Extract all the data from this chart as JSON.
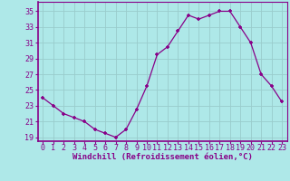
{
  "x": [
    0,
    1,
    2,
    3,
    4,
    5,
    6,
    7,
    8,
    9,
    10,
    11,
    12,
    13,
    14,
    15,
    16,
    17,
    18,
    19,
    20,
    21,
    22,
    23
  ],
  "y": [
    24,
    23,
    22,
    21.5,
    21,
    20,
    19.5,
    19,
    20,
    22.5,
    25.5,
    29.5,
    30.5,
    32.5,
    34.5,
    34,
    34.5,
    35,
    35,
    33,
    31,
    27,
    25.5,
    23.5
  ],
  "line_color": "#880088",
  "marker": "+",
  "bg_color": "#aee8e8",
  "grid_color": "#99cccc",
  "xlabel": "Windchill (Refroidissement éolien,°C)",
  "xlabel_fontsize": 6.5,
  "yticks": [
    19,
    21,
    23,
    25,
    27,
    29,
    31,
    33,
    35
  ],
  "xtick_labels": [
    "0",
    "1",
    "2",
    "3",
    "4",
    "5",
    "6",
    "7",
    "8",
    "9",
    "10",
    "11",
    "12",
    "13",
    "14",
    "15",
    "16",
    "17",
    "18",
    "19",
    "20",
    "21",
    "22",
    "23"
  ],
  "ylim": [
    18.5,
    36.2
  ],
  "xlim": [
    -0.5,
    23.5
  ],
  "tick_fontsize": 6,
  "tick_color": "#880088",
  "label_color": "#880088"
}
